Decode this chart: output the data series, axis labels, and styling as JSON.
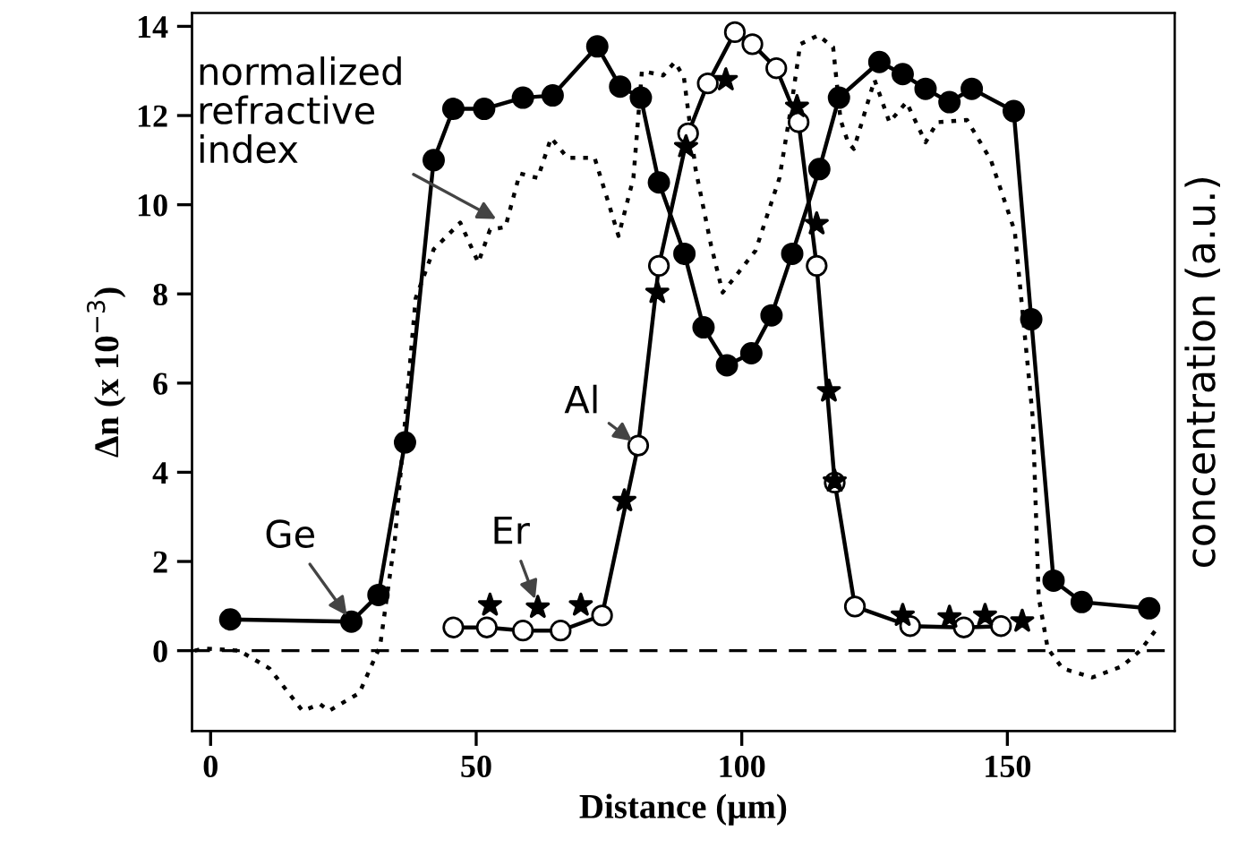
{
  "chart_data": {
    "type": "line",
    "xlabel": "Distance (µm)",
    "ylabel": "Δn (x 10$^{−3}$)",
    "y2label": "concentration (a.u.)",
    "xlim": [
      -3.5,
      181.5
    ],
    "ylim": [
      -1.8,
      14.3
    ],
    "xticks": [
      0,
      50,
      100,
      150
    ],
    "yticks": [
      0,
      2,
      4,
      6,
      8,
      10,
      12,
      14
    ],
    "grid": false,
    "series": [
      {
        "color": "#000000",
        "marker": "none",
        "line_style": "dotted",
        "x": [
          -3,
          -1.2,
          5.4,
          11.1,
          17.3,
          20.6,
          22.3,
          28,
          31.9,
          34.7,
          38.6,
          42,
          47,
          50.4,
          52.6,
          55.5,
          58.2,
          61.6,
          64.1,
          67.2,
          72.3,
          74.5,
          76.8,
          79.6,
          81.2,
          85.2,
          87.4,
          89.1,
          91.3,
          94.2,
          96.4,
          102.6,
          107.1,
          109.3,
          111,
          114.4,
          117.2,
          118.6,
          120,
          121.1,
          125,
          127.8,
          131,
          134.6,
          136.8,
          142.4,
          146.9,
          151.4,
          154.8,
          155.9,
          157.6,
          160.4,
          166,
          171.6,
          175,
          178.3
        ],
        "values": [
          0.0,
          0.05,
          0.0,
          -0.4,
          -1.35,
          -1.2,
          -1.35,
          -0.95,
          0.1,
          2.5,
          7.9,
          9.0,
          9.6,
          8.7,
          9.44,
          9.5,
          10.7,
          10.6,
          11.5,
          11.05,
          11.05,
          10.2,
          9.3,
          10.6,
          13.0,
          12.9,
          13.2,
          12.86,
          10.8,
          9.1,
          8.03,
          8.97,
          10.6,
          12.2,
          13.6,
          13.8,
          13.53,
          11.9,
          11.4,
          11.25,
          12.8,
          11.85,
          12.3,
          11.4,
          11.85,
          11.9,
          11.0,
          9.4,
          5.2,
          1.2,
          0.05,
          -0.4,
          -0.6,
          -0.35,
          0.0,
          0.52
        ]
      },
      {
        "color": "#000000",
        "marker": "circle",
        "line_style": "solid",
        "x": [
          3.7,
          26.5,
          31.6,
          36.6,
          42,
          45.7,
          51.5,
          58.8,
          64.4,
          72.8,
          77.1,
          81,
          84.4,
          89.2,
          92.8,
          97.2,
          101.8,
          105.6,
          109.5,
          114.6,
          118.3,
          125.9,
          130.3,
          134.6,
          139.1,
          143.3,
          151.2,
          154.5,
          158.7,
          164,
          176.7
        ],
        "values": [
          0.7,
          0.65,
          1.25,
          4.67,
          11.0,
          12.15,
          12.15,
          12.4,
          12.45,
          13.55,
          12.65,
          12.4,
          10.5,
          8.9,
          7.25,
          6.4,
          6.67,
          7.52,
          8.9,
          10.8,
          12.4,
          13.2,
          12.93,
          12.6,
          12.3,
          12.6,
          12.1,
          7.43,
          1.57,
          1.09,
          0.95
        ]
      },
      {
        "color": "#000000",
        "marker": "circle",
        "line_style": "solid",
        "x": [
          45.7,
          52,
          58.8,
          65.9,
          73.7,
          80.5,
          84.4,
          89.9,
          93.6,
          98.7,
          102,
          106.5,
          110.7,
          114.1,
          117.5,
          121.3,
          131.7,
          141.8,
          148.8
        ],
        "values": [
          0.52,
          0.52,
          0.45,
          0.45,
          0.79,
          4.6,
          8.63,
          11.6,
          12.72,
          13.87,
          13.6,
          13.06,
          11.85,
          8.63,
          3.77,
          0.99,
          0.55,
          0.52,
          0.55
        ],
        "colors": [
          "#ffffff",
          "#ffffff",
          "#ffffff",
          "#ffffff",
          "#ffffff",
          "#ffffff",
          "#ffffff",
          "#ffffff",
          "#ffffff",
          "#ffffff",
          "#ffffff",
          "#ffffff",
          "#ffffff",
          "#ffffff",
          "#ffffff",
          "#ffffff",
          "#ffffff",
          "#ffffff",
          "#ffffff"
        ]
      },
      {
        "type": "scatter",
        "color": "#000000",
        "marker": "star",
        "x": [
          52.6,
          61.6,
          69.7,
          77.9,
          84.1,
          89.5,
          97,
          110.4,
          114.1,
          116.4,
          117.5,
          130.3,
          139.1,
          145.8,
          152.8
        ],
        "values": [
          1.02,
          0.97,
          1.02,
          3.36,
          8.03,
          11.3,
          12.8,
          12.2,
          9.57,
          5.82,
          3.8,
          0.79,
          0.75,
          0.79,
          0.66
        ]
      }
    ],
    "ref_lines": [
      {
        "axis": "y",
        "value": 0,
        "line_style": "dashed",
        "color": "#000000"
      }
    ],
    "annotations": [
      {
        "text": "normalized\nrefractive\nindex",
        "x": 55,
        "y": 9.6
      },
      {
        "text": "Ge",
        "x": 26.5,
        "y": 0.65
      },
      {
        "text": "Er",
        "x": 61.6,
        "y": 1.0
      },
      {
        "text": "Al",
        "x": 80.5,
        "y": 4.6
      }
    ]
  }
}
